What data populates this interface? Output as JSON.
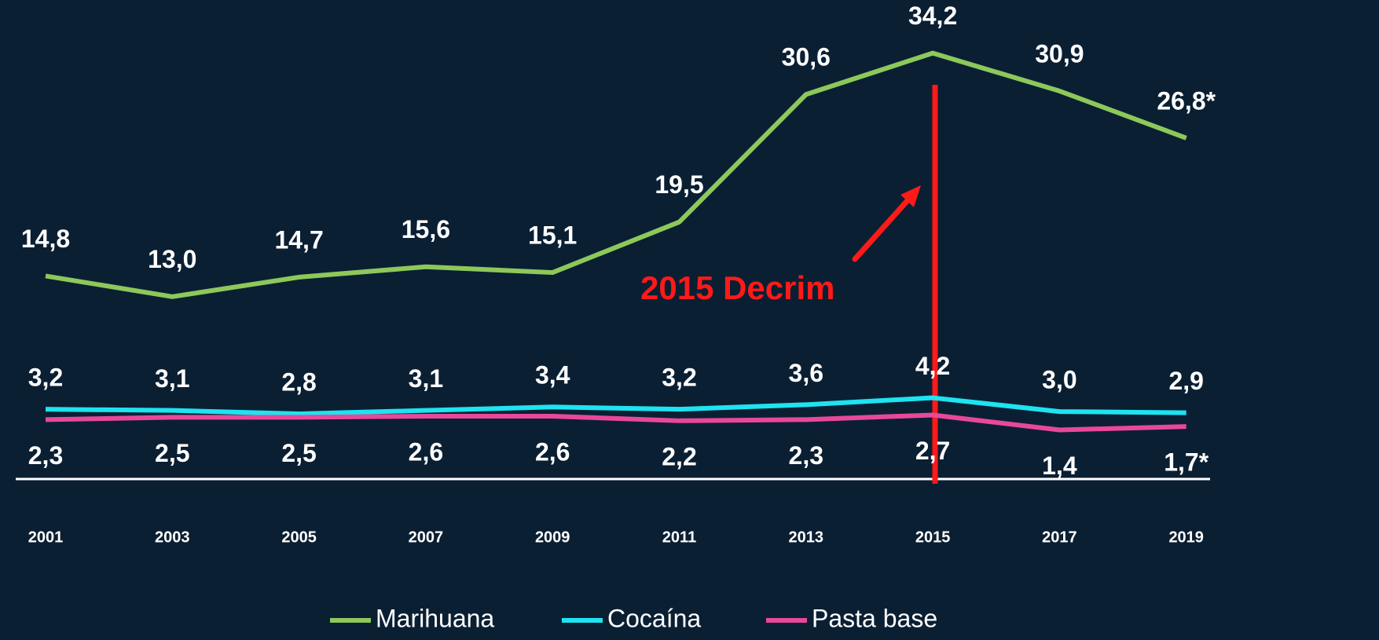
{
  "chart_data": {
    "type": "line",
    "categories": [
      "2001",
      "2003",
      "2005",
      "2007",
      "2009",
      "2011",
      "2013",
      "2015",
      "2017",
      "2019"
    ],
    "series": [
      {
        "name": "Marihuana",
        "color": "#8dc85a",
        "values": [
          14.8,
          13.0,
          14.7,
          15.6,
          15.1,
          19.5,
          30.6,
          34.2,
          30.9,
          26.8
        ],
        "value_labels": [
          "14,8",
          "13,0",
          "14,7",
          "15,6",
          "15,1",
          "19,5",
          "30,6",
          "34,2",
          "30,9",
          "26,8*"
        ]
      },
      {
        "name": "Cocaína",
        "color": "#1ee3f0",
        "values": [
          3.2,
          3.1,
          2.8,
          3.1,
          3.4,
          3.2,
          3.6,
          4.2,
          3.0,
          2.9
        ],
        "value_labels": [
          "3,2",
          "3,1",
          "2,8",
          "3,1",
          "3,4",
          "3,2",
          "3,6",
          "4,2",
          "3,0",
          "2,9"
        ]
      },
      {
        "name": "Pasta base",
        "color": "#e8489a",
        "values": [
          2.3,
          2.5,
          2.5,
          2.6,
          2.6,
          2.2,
          2.3,
          2.7,
          1.4,
          1.7
        ],
        "value_labels": [
          "2,3",
          "2,5",
          "2,5",
          "2,6",
          "2,6",
          "2,2",
          "2,3",
          "2,7",
          "1,4",
          "1,7*"
        ]
      }
    ],
    "ylim": [
      0,
      38
    ],
    "annotation": "2015 Decrim",
    "annotation_color": "#ff1a1a"
  }
}
